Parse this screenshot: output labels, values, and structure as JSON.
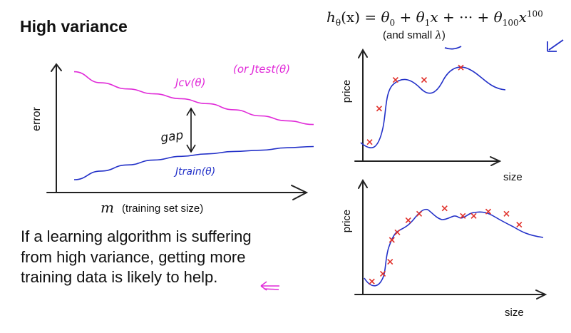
{
  "slide": {
    "title": "High variance",
    "formula": {
      "lhs": "h",
      "lhs_sub": "θ",
      "lhs_arg": "(x) = ",
      "t0": "θ",
      "t0_sub": "0",
      "plus1": " + ",
      "t1": "θ",
      "t1_sub": "1",
      "t1_var": "x",
      "dots": " + ··· + ",
      "t2": "θ",
      "t2_sub": "100",
      "t2_var": "x",
      "t2_sup": "100"
    },
    "formula_note_prefix": "(and small ",
    "formula_note_symbol": "λ",
    "formula_note_suffix": ")",
    "paragraph": [
      "If a learning algorithm is suffering",
      "from high variance, getting more",
      "training data is likely to help."
    ]
  },
  "learning_curve": {
    "y_axis_label": "error",
    "x_axis_symbol": "m",
    "x_axis_label": "(training set size)",
    "gap_label": "gap",
    "cv_label": "Jcv(θ)",
    "test_label": "(or Jtest(θ)",
    "train_label": "Jtrain(θ)",
    "colors": {
      "cv": "#e02ad8",
      "train": "#2230c8",
      "annotation": "#e02ad8"
    }
  },
  "plots": {
    "top": {
      "y_label": "price",
      "x_label": "size"
    },
    "bottom": {
      "y_label": "price",
      "x_label": "size"
    },
    "marker_color": "#e0302a",
    "curve_color": "#2230c8"
  },
  "chart_data": [
    {
      "type": "line",
      "title": "",
      "xlabel": "m (training set size)",
      "ylabel": "error",
      "series": [
        {
          "name": "Jcv(θ)",
          "x": [
            1,
            2,
            3,
            4,
            5,
            6,
            7,
            8,
            9,
            10
          ],
          "values": [
            0.95,
            0.86,
            0.81,
            0.77,
            0.73,
            0.69,
            0.64,
            0.59,
            0.55,
            0.52
          ]
        },
        {
          "name": "Jtrain(θ)",
          "x": [
            1,
            2,
            3,
            4,
            5,
            6,
            7,
            8,
            9,
            10
          ],
          "values": [
            0.07,
            0.14,
            0.19,
            0.23,
            0.26,
            0.28,
            0.3,
            0.31,
            0.33,
            0.34
          ]
        }
      ]
    },
    {
      "type": "scatter",
      "title": "",
      "xlabel": "size",
      "ylabel": "price",
      "points_x": [
        0.05,
        0.12,
        0.24,
        0.45,
        0.72
      ],
      "points_y": [
        0.2,
        0.55,
        0.85,
        0.85,
        0.98
      ]
    },
    {
      "type": "scatter",
      "title": "",
      "xlabel": "size",
      "ylabel": "price",
      "points_x": [
        0.05,
        0.11,
        0.15,
        0.16,
        0.19,
        0.25,
        0.31,
        0.45,
        0.55,
        0.61,
        0.69,
        0.79,
        0.86
      ],
      "points_y": [
        0.12,
        0.19,
        0.3,
        0.5,
        0.57,
        0.68,
        0.74,
        0.79,
        0.72,
        0.72,
        0.76,
        0.74,
        0.64
      ]
    }
  ]
}
